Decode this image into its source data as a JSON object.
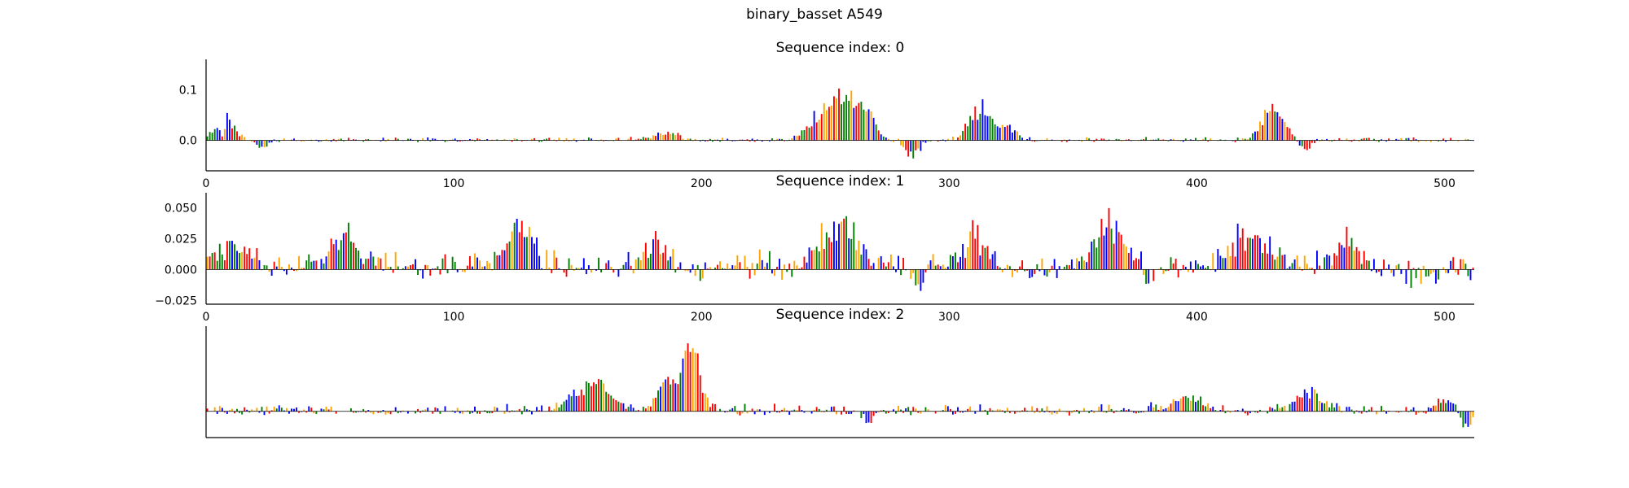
{
  "figure": {
    "title": "binary_basset A549"
  },
  "colors": {
    "A": "#008000",
    "C": "#0000ff",
    "G": "#ffa500",
    "T": "#ff0000"
  },
  "chart_data": [
    {
      "type": "sequence_logo",
      "title": "Sequence index: 0",
      "xlim": [
        0,
        512
      ],
      "ylim": [
        -0.06,
        0.16
      ],
      "xticks": [
        0,
        100,
        200,
        300,
        400,
        500
      ],
      "yticks": [
        0.0,
        0.1
      ],
      "ytick_labels": [
        "0.0",
        "0.1"
      ],
      "show_xticks": true,
      "show_yticks": true,
      "baseline": 0.005,
      "noise": 0.004,
      "peaks": [
        {
          "center": 7,
          "width": 5,
          "height": 0.06
        },
        {
          "center": 6,
          "width": 1,
          "height": -0.06
        },
        {
          "center": 185,
          "width": 7,
          "height": 0.02
        },
        {
          "center": 245,
          "width": 6,
          "height": 0.04
        },
        {
          "center": 256,
          "width": 8,
          "height": 0.11
        },
        {
          "center": 266,
          "width": 5,
          "height": 0.07
        },
        {
          "center": 285,
          "width": 4,
          "height": -0.04
        },
        {
          "center": 312,
          "width": 6,
          "height": 0.08
        },
        {
          "center": 323,
          "width": 5,
          "height": 0.03
        },
        {
          "center": 430,
          "width": 6,
          "height": 0.09
        },
        {
          "center": 443,
          "width": 3,
          "height": -0.03
        },
        {
          "center": 22,
          "width": 4,
          "height": -0.02
        }
      ]
    },
    {
      "type": "sequence_logo",
      "title": "Sequence index: 1",
      "xlim": [
        0,
        512
      ],
      "ylim": [
        -0.028,
        0.062
      ],
      "xticks": [
        0,
        100,
        200,
        300,
        400,
        500
      ],
      "yticks": [
        -0.025,
        0.0,
        0.025,
        0.05
      ],
      "ytick_labels": [
        "−0.025",
        "0.000",
        "0.025",
        "0.050"
      ],
      "show_xticks": true,
      "show_yticks": true,
      "baseline": 0.012,
      "noise": 0.01,
      "peaks": [
        {
          "center": 12,
          "width": 8,
          "height": 0.025
        },
        {
          "center": 55,
          "width": 10,
          "height": 0.03
        },
        {
          "center": 125,
          "width": 8,
          "height": 0.045
        },
        {
          "center": 180,
          "width": 6,
          "height": 0.03
        },
        {
          "center": 255,
          "width": 10,
          "height": 0.045
        },
        {
          "center": 310,
          "width": 8,
          "height": 0.03
        },
        {
          "center": 365,
          "width": 10,
          "height": 0.04
        },
        {
          "center": 420,
          "width": 12,
          "height": 0.03
        },
        {
          "center": 460,
          "width": 8,
          "height": 0.025
        },
        {
          "center": 287,
          "width": 3,
          "height": -0.025
        },
        {
          "center": 380,
          "width": 2,
          "height": -0.025
        },
        {
          "center": 490,
          "width": 8,
          "height": -0.012
        }
      ]
    },
    {
      "type": "sequence_logo",
      "title": "Sequence index: 2",
      "xlim": [
        0,
        512
      ],
      "ylim": [
        -0.02,
        0.065
      ],
      "xticks": [],
      "yticks": [],
      "ytick_labels": [],
      "show_xticks": false,
      "show_yticks": false,
      "baseline": 0.004,
      "noise": 0.004,
      "peaks": [
        {
          "center": 155,
          "width": 10,
          "height": 0.025
        },
        {
          "center": 195,
          "width": 5,
          "height": 0.065
        },
        {
          "center": 185,
          "width": 4,
          "height": 0.03
        },
        {
          "center": 395,
          "width": 10,
          "height": 0.012
        },
        {
          "center": 445,
          "width": 8,
          "height": 0.018
        },
        {
          "center": 500,
          "width": 6,
          "height": 0.01
        },
        {
          "center": 508,
          "width": 3,
          "height": -0.02
        },
        {
          "center": 267,
          "width": 3,
          "height": -0.012
        }
      ]
    }
  ]
}
